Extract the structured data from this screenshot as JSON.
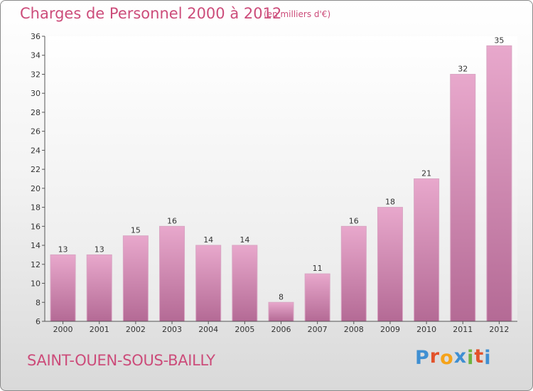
{
  "header": {
    "title": "Charges de Personnel 2000 à 2012",
    "subtitle": "(en milliers d'€)"
  },
  "footer": {
    "town": "SAINT-OUEN-SOUS-BAILLY",
    "logo": "Proxiti"
  },
  "colors": {
    "accent": "#cc4c7a",
    "bar_top": "#e8a8cc",
    "bar_bottom": "#b46a95",
    "logo_letters": [
      "#3f8fd2",
      "#e2522b",
      "#f5a31a",
      "#3f8fd2",
      "#6db33f",
      "#e2522b",
      "#3f8fd2"
    ]
  },
  "chart_data": {
    "type": "bar",
    "title": "Charges de Personnel 2000 à 2012",
    "subtitle": "(en milliers d'€)",
    "xlabel": "",
    "ylabel": "",
    "categories": [
      "2000",
      "2001",
      "2002",
      "2003",
      "2004",
      "2005",
      "2006",
      "2007",
      "2008",
      "2009",
      "2010",
      "2011",
      "2012"
    ],
    "values": [
      13,
      13,
      15,
      16,
      14,
      14,
      8,
      11,
      16,
      18,
      21,
      32,
      35
    ],
    "ylim": [
      6,
      36
    ],
    "yticks": [
      6,
      8,
      10,
      12,
      14,
      16,
      18,
      20,
      22,
      24,
      26,
      28,
      30,
      32,
      34,
      36
    ],
    "grid": false,
    "legend": "none",
    "data_labels": true
  }
}
